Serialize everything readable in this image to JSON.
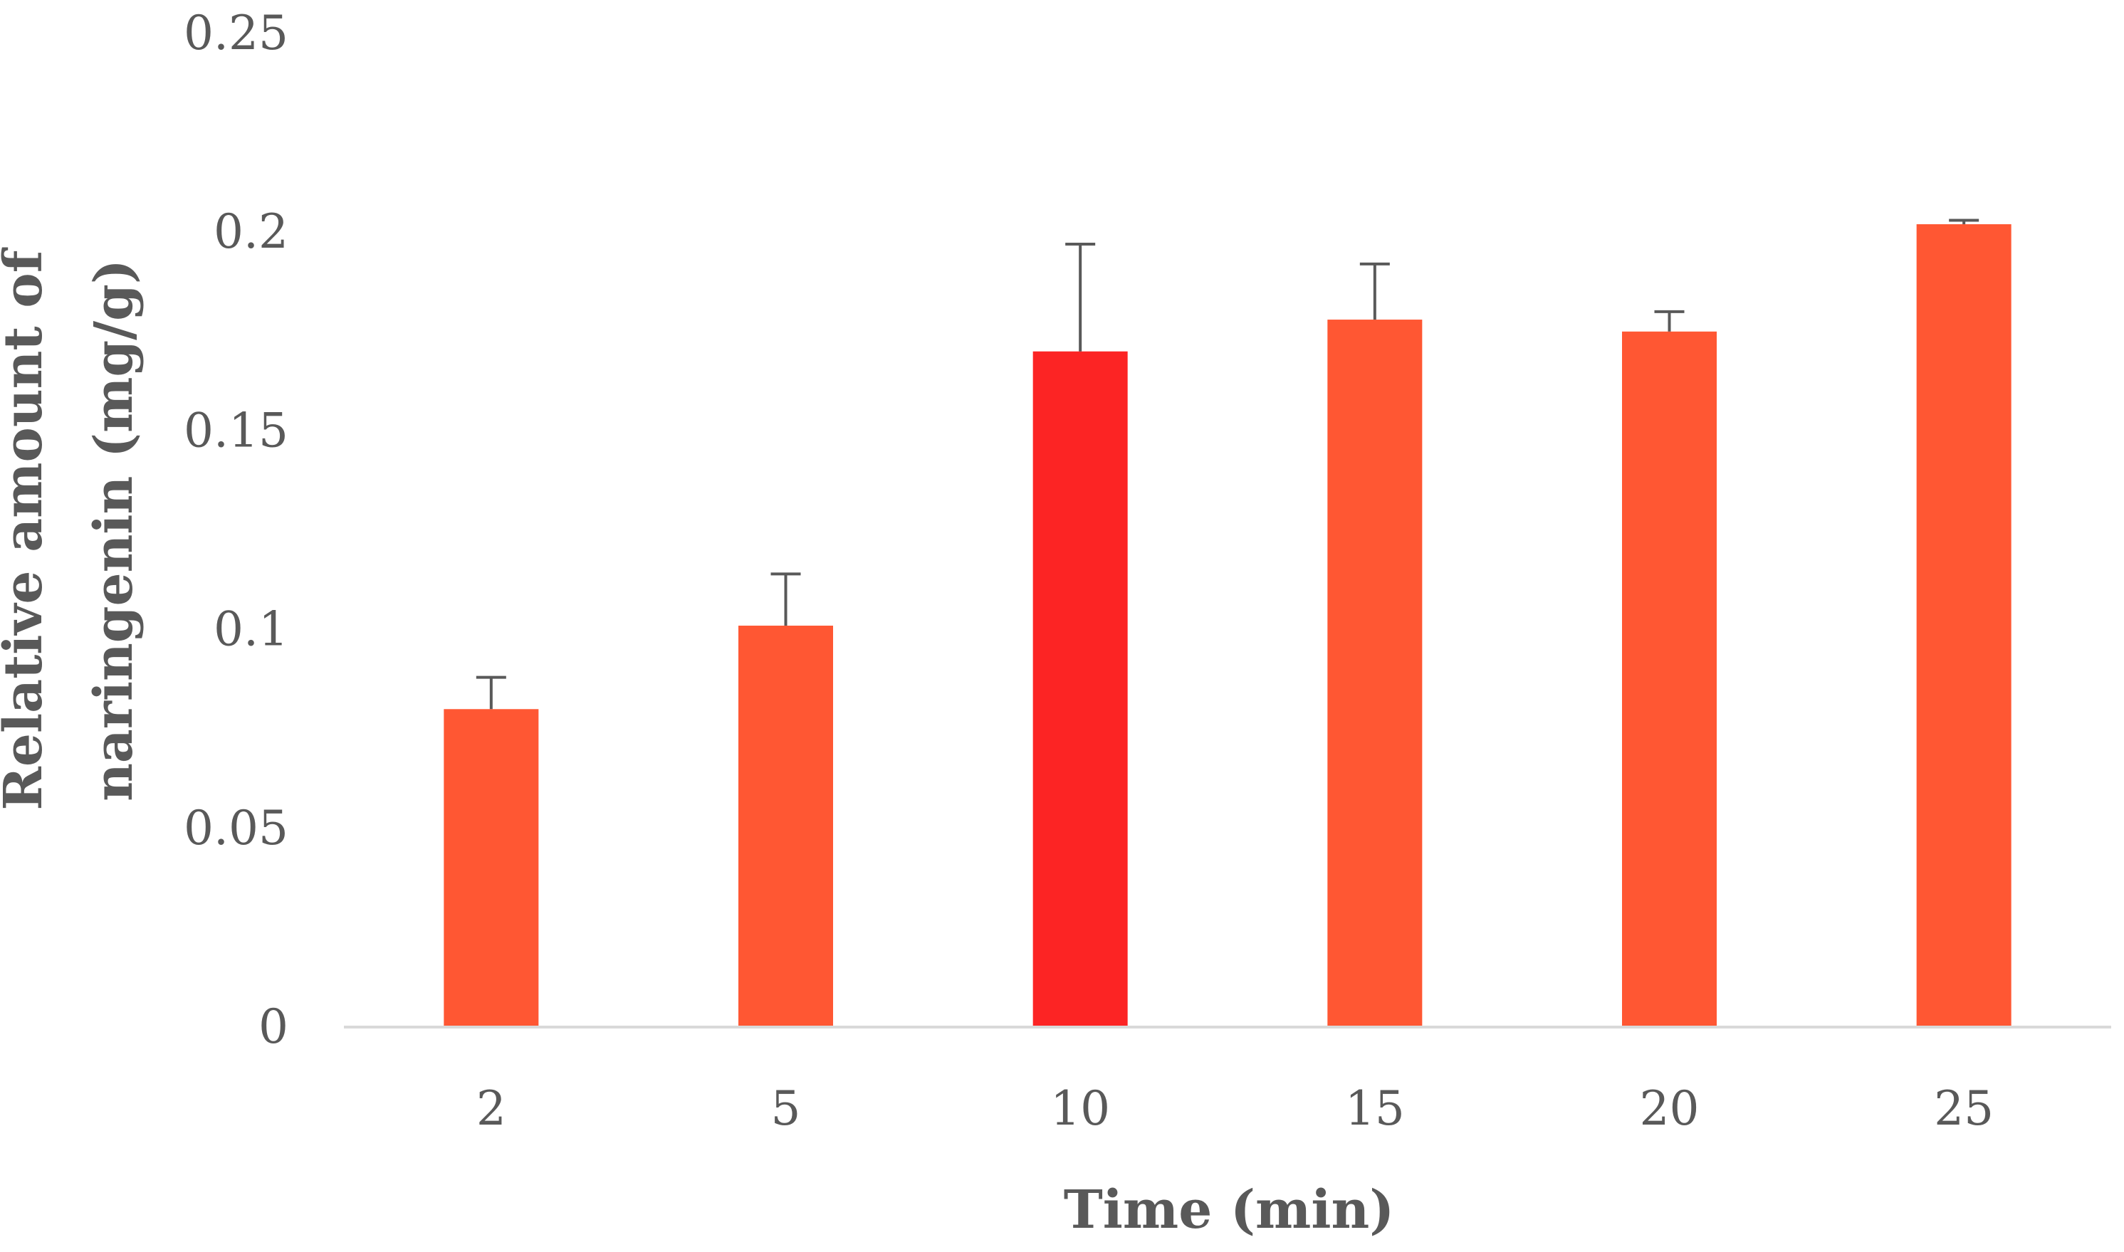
{
  "chart_data": {
    "type": "bar",
    "title": "",
    "xlabel": "Time (min)",
    "ylabel_lines": [
      "Relative amount of",
      "naringenin (mg/g)"
    ],
    "categories": [
      "2",
      "5",
      "10",
      "15",
      "20",
      "25"
    ],
    "series": [
      {
        "values": [
          0.08,
          0.101,
          0.17,
          0.178,
          0.175,
          0.202
        ],
        "error_upper": [
          0.008,
          0.013,
          0.027,
          0.014,
          0.005,
          0.001
        ]
      }
    ],
    "ylim": [
      0,
      0.25
    ],
    "yticks": [
      "0",
      "0.05",
      "0.1",
      "0.15",
      "0.2",
      "0.25"
    ],
    "grid": false,
    "legend": "none",
    "colors": {
      "bar": "#ff5733",
      "bar_highlight": "#fc2424",
      "highlight_index": 2,
      "error_bar": "#595959",
      "axis_line": "#d9d9d9",
      "text": "#595959"
    }
  }
}
